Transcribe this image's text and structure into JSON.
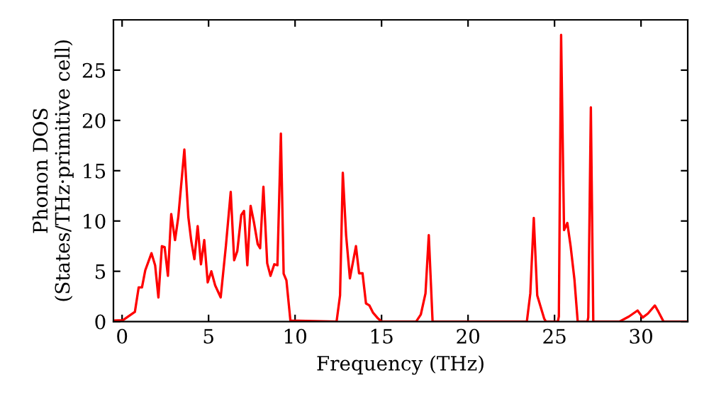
{
  "chart_data": {
    "type": "line",
    "xlabel": "Frequency (THz)",
    "ylabel": "Phonon DOS\n(States/THz·primitive cell)",
    "xlim": [
      -0.5,
      32.7
    ],
    "ylim": [
      0,
      30
    ],
    "xticks": [
      0,
      5,
      10,
      15,
      20,
      25,
      30
    ],
    "yticks": [
      0,
      5,
      10,
      15,
      20,
      25
    ],
    "grid": false,
    "legend": false,
    "marker": "none",
    "line_style": "solid",
    "series": [
      {
        "color": "#ff0000",
        "x": [
          -0.5,
          0.05,
          0.74,
          0.96,
          1.15,
          1.34,
          1.7,
          1.91,
          2.1,
          2.3,
          2.46,
          2.65,
          2.84,
          3.06,
          3.25,
          3.6,
          3.83,
          4.0,
          4.18,
          4.37,
          4.56,
          4.75,
          4.95,
          5.16,
          5.38,
          5.7,
          6.0,
          6.28,
          6.48,
          6.66,
          6.89,
          7.05,
          7.24,
          7.43,
          7.62,
          7.84,
          7.98,
          8.17,
          8.39,
          8.58,
          8.8,
          8.98,
          9.18,
          9.34,
          9.5,
          9.73,
          12.4,
          12.6,
          12.76,
          12.95,
          13.17,
          13.52,
          13.7,
          13.9,
          14.1,
          14.3,
          14.5,
          14.8,
          15.0,
          17.0,
          17.27,
          17.54,
          17.73,
          17.95,
          23.4,
          23.6,
          23.8,
          24.0,
          24.4,
          24.5,
          25.19,
          25.25,
          25.38,
          25.55,
          25.74,
          25.93,
          26.15,
          26.34,
          26.9,
          26.95,
          27.1,
          27.24,
          28.75,
          29.3,
          29.8,
          30.1,
          30.4,
          30.8,
          31.0,
          31.3,
          32.7
        ],
        "values": [
          0.1,
          0.14,
          0.96,
          3.4,
          3.4,
          5.1,
          6.8,
          5.6,
          2.4,
          7.5,
          7.4,
          4.55,
          10.7,
          8.1,
          10.4,
          17.1,
          10.4,
          8.0,
          6.2,
          9.5,
          5.7,
          8.1,
          3.9,
          5.0,
          3.6,
          2.4,
          7.5,
          12.9,
          6.1,
          7.0,
          10.6,
          11.0,
          5.6,
          11.5,
          9.9,
          7.7,
          7.3,
          13.4,
          5.8,
          4.55,
          5.7,
          5.6,
          18.7,
          4.75,
          4.1,
          0.1,
          0,
          2.6,
          14.8,
          8.6,
          4.3,
          7.5,
          4.8,
          4.8,
          1.8,
          1.6,
          0.9,
          0.3,
          0,
          0,
          0.7,
          2.8,
          8.6,
          0,
          0,
          2.8,
          10.3,
          2.6,
          0.3,
          0,
          0,
          0.5,
          28.5,
          9.1,
          9.8,
          7.5,
          4.2,
          0,
          0,
          0.4,
          21.3,
          0,
          0,
          0.5,
          1.1,
          0.4,
          0.8,
          1.6,
          1.0,
          0,
          0
        ]
      }
    ]
  }
}
